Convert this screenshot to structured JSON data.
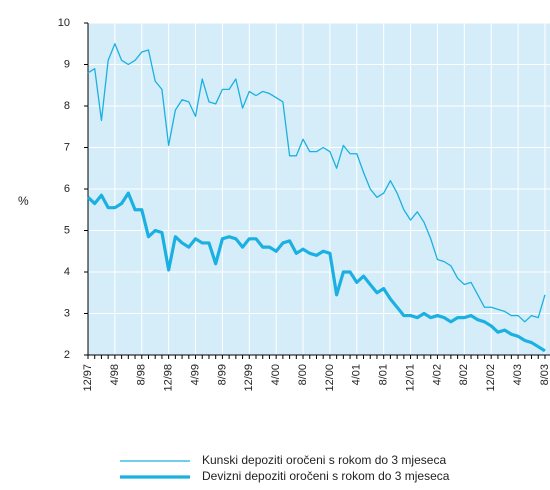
{
  "chart_data": {
    "type": "line",
    "y_label": "%",
    "categories": [
      "12/97",
      null,
      null,
      null,
      "4/98",
      null,
      null,
      null,
      "8/98",
      null,
      null,
      null,
      "12/98",
      null,
      null,
      null,
      "4/99",
      null,
      null,
      null,
      "8/99",
      null,
      null,
      null,
      "12/99",
      null,
      null,
      null,
      "4/00",
      null,
      null,
      null,
      "8/00",
      null,
      null,
      null,
      "12/00",
      null,
      null,
      null,
      "4/01",
      null,
      null,
      null,
      "8/01",
      null,
      null,
      null,
      "12/01",
      null,
      null,
      null,
      "4/02",
      null,
      null,
      null,
      "8/02",
      null,
      null,
      null,
      "12/02",
      null,
      null,
      null,
      "4/03",
      null,
      null,
      null,
      "8/03"
    ],
    "series": [
      {
        "name": "Kunski depoziti oročeni s rokom do 3 mjeseca",
        "color": "#1bb0e2",
        "width": 1.3,
        "values": [
          8.8,
          8.9,
          7.65,
          9.1,
          9.5,
          9.1,
          9.0,
          9.1,
          9.3,
          9.35,
          8.6,
          8.4,
          7.05,
          7.9,
          8.15,
          8.1,
          7.75,
          8.65,
          8.1,
          8.05,
          8.4,
          8.4,
          8.65,
          7.95,
          8.35,
          8.25,
          8.35,
          8.3,
          8.2,
          8.1,
          6.8,
          6.8,
          7.2,
          6.9,
          6.9,
          7.0,
          6.9,
          6.5,
          7.05,
          6.85,
          6.85,
          6.4,
          6.0,
          5.8,
          5.9,
          6.2,
          5.9,
          5.5,
          5.25,
          5.45,
          5.2,
          4.8,
          4.3,
          4.25,
          4.15,
          3.85,
          3.7,
          3.75,
          3.45,
          3.15,
          3.15,
          3.1,
          3.05,
          2.95,
          2.95,
          2.8,
          2.95,
          2.9,
          3.45
        ]
      },
      {
        "name": "Devizni depoziti oročeni s rokom do 3 mjeseca",
        "color": "#1bb0e2",
        "width": 3.2,
        "values": [
          5.8,
          5.65,
          5.85,
          5.55,
          5.55,
          5.65,
          5.9,
          5.5,
          5.5,
          4.85,
          5.0,
          4.95,
          4.05,
          4.85,
          4.7,
          4.6,
          4.8,
          4.7,
          4.7,
          4.2,
          4.8,
          4.85,
          4.8,
          4.6,
          4.8,
          4.8,
          4.6,
          4.6,
          4.5,
          4.7,
          4.75,
          4.45,
          4.55,
          4.45,
          4.4,
          4.5,
          4.45,
          3.45,
          4.0,
          4.0,
          3.75,
          3.9,
          3.7,
          3.5,
          3.6,
          3.35,
          3.15,
          2.95,
          2.95,
          2.9,
          3.0,
          2.9,
          2.95,
          2.9,
          2.8,
          2.9,
          2.9,
          2.95,
          2.85,
          2.8,
          2.7,
          2.55,
          2.6,
          2.5,
          2.45,
          2.35,
          2.3,
          2.2,
          2.1
        ]
      }
    ],
    "ylim": [
      2,
      10
    ],
    "yticks": [
      2,
      3,
      4,
      5,
      6,
      7,
      8,
      9,
      10
    ],
    "grid": true,
    "background": "#d5edf8"
  }
}
